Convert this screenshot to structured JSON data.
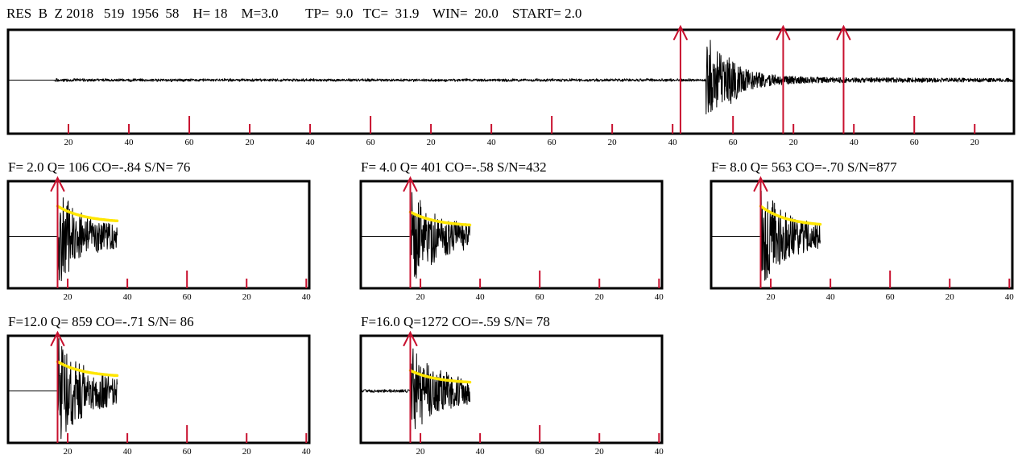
{
  "header": {
    "text": "RES  B  Z 2018   519  1956  58    H= 18    M=3.0        TP=  9.0   TC=  31.9    WIN=  20.0    START= 2.0"
  },
  "colors": {
    "trace": "#000000",
    "frame": "#000000",
    "pick": "#c8102e",
    "coda_fit": "#ffe600",
    "background": "#ffffff"
  },
  "chart_data": [
    {
      "id": "overview",
      "type": "line",
      "ticks": [
        {
          "t": 20,
          "label": "20"
        },
        {
          "t": 40,
          "label": "40"
        },
        {
          "t": 60,
          "label": "60"
        },
        {
          "t": 80,
          "label": "20"
        },
        {
          "t": 100,
          "label": "40"
        },
        {
          "t": 120,
          "label": "60"
        },
        {
          "t": 140,
          "label": "20"
        },
        {
          "t": 160,
          "label": "40"
        },
        {
          "t": 180,
          "label": "60"
        },
        {
          "t": 200,
          "label": "20"
        },
        {
          "t": 220,
          "label": "40"
        },
        {
          "t": 240,
          "label": "60"
        },
        {
          "t": 260,
          "label": "20"
        },
        {
          "t": 280,
          "label": "40"
        },
        {
          "t": 300,
          "label": "60"
        },
        {
          "t": 320,
          "label": "20"
        }
      ],
      "xlim": [
        0,
        333
      ],
      "signal": {
        "noise_start": 15,
        "noise_amp": 0.035,
        "onset": 231,
        "peak_amp": 0.95,
        "decay": 0.13,
        "tail_amp": 0.06
      },
      "picks": [
        222.6,
        256.6,
        276.6
      ],
      "major_tick_every": 3
    },
    {
      "id": "f2",
      "type": "line",
      "label": "F= 2.0    Q= 106    CO=-.84    S/N= 76",
      "F": 2.0,
      "Q": 106,
      "CO": -0.84,
      "SN": 76,
      "ticks": [
        {
          "t": 20,
          "label": "20"
        },
        {
          "t": 40,
          "label": "40"
        },
        {
          "t": 60,
          "label": "60"
        },
        {
          "t": 80,
          "label": "20"
        },
        {
          "t": 100,
          "label": "40"
        }
      ],
      "xlim": [
        0,
        101
      ],
      "window": [
        16.6,
        36.6
      ],
      "pick": 16.6,
      "fit": {
        "a0": 0.62,
        "a1": 0.28
      },
      "signal": {
        "amp": 0.9,
        "decay": 0.06
      }
    },
    {
      "id": "f4",
      "type": "line",
      "label": "F= 4.0    Q= 401    CO=-.58    S/N=432",
      "F": 4.0,
      "Q": 401,
      "CO": -0.58,
      "SN": 432,
      "ticks": [
        {
          "t": 20,
          "label": "20"
        },
        {
          "t": 40,
          "label": "40"
        },
        {
          "t": 60,
          "label": "60"
        },
        {
          "t": 80,
          "label": "20"
        },
        {
          "t": 100,
          "label": "40"
        }
      ],
      "xlim": [
        0,
        101
      ],
      "window": [
        16.6,
        36.6
      ],
      "pick": 16.6,
      "fit": {
        "a0": 0.5,
        "a1": 0.2
      },
      "signal": {
        "amp": 0.95,
        "decay": 0.055
      }
    },
    {
      "id": "f8",
      "type": "line",
      "label": "F= 8.0    Q= 563    CO=-.70    S/N=877",
      "F": 8.0,
      "Q": 563,
      "CO": -0.7,
      "SN": 877,
      "ticks": [
        {
          "t": 20,
          "label": "20"
        },
        {
          "t": 40,
          "label": "40"
        },
        {
          "t": 60,
          "label": "60"
        },
        {
          "t": 80,
          "label": "20"
        },
        {
          "t": 100,
          "label": "40"
        }
      ],
      "xlim": [
        0,
        101
      ],
      "window": [
        16.6,
        36.6
      ],
      "pick": 16.6,
      "fit": {
        "a0": 0.62,
        "a1": 0.2
      },
      "signal": {
        "amp": 0.9,
        "decay": 0.055
      }
    },
    {
      "id": "f12",
      "type": "line",
      "label": "F=12.0    Q= 859    CO=-.71    S/N= 86",
      "F": 12.0,
      "Q": 859,
      "CO": -0.71,
      "SN": 86,
      "ticks": [
        {
          "t": 20,
          "label": "20"
        },
        {
          "t": 40,
          "label": "40"
        },
        {
          "t": 60,
          "label": "60"
        },
        {
          "t": 80,
          "label": "20"
        },
        {
          "t": 100,
          "label": "40"
        }
      ],
      "xlim": [
        0,
        101
      ],
      "window": [
        16.6,
        36.6
      ],
      "pick": 16.6,
      "fit": {
        "a0": 0.6,
        "a1": 0.28
      },
      "signal": {
        "amp": 0.95,
        "decay": 0.05
      }
    },
    {
      "id": "f16",
      "type": "line",
      "label": "F=16.0    Q=1272    CO=-.59    S/N= 78",
      "F": 16.0,
      "Q": 1272,
      "CO": -0.59,
      "SN": 78,
      "ticks": [
        {
          "t": 20,
          "label": "20"
        },
        {
          "t": 40,
          "label": "40"
        },
        {
          "t": 60,
          "label": "60"
        },
        {
          "t": 80,
          "label": "20"
        },
        {
          "t": 100,
          "label": "40"
        }
      ],
      "xlim": [
        0,
        101
      ],
      "window": [
        16.6,
        36.6
      ],
      "pick": 16.6,
      "fit": {
        "a0": 0.42,
        "a1": 0.15
      },
      "signal": {
        "amp": 0.8,
        "decay": 0.05
      }
    }
  ]
}
